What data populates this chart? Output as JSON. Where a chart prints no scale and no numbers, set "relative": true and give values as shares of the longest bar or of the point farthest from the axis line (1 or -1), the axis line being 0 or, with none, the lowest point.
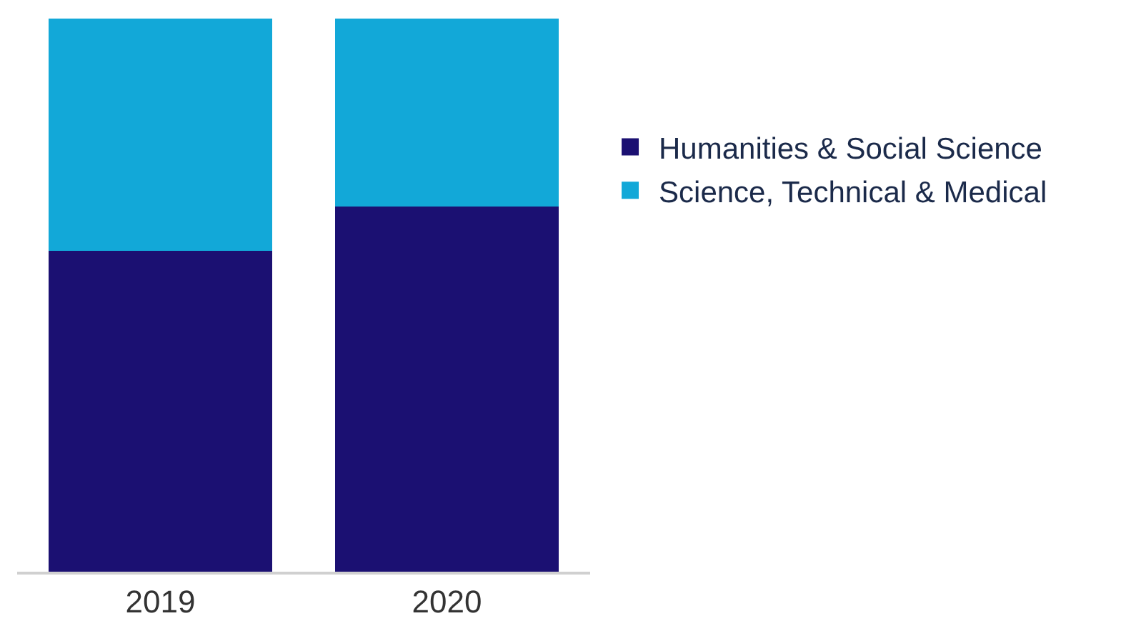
{
  "chart_data": {
    "type": "bar",
    "stacked": true,
    "relative": true,
    "categories": [
      "2019",
      "2020"
    ],
    "series": [
      {
        "name": "Humanities & Social Science",
        "color": "#1b1072",
        "values": [
          0.58,
          0.66
        ]
      },
      {
        "name": "Science, Technical & Medical",
        "color": "#12a8d8",
        "values": [
          0.42,
          0.34
        ]
      }
    ],
    "legend": "right"
  }
}
